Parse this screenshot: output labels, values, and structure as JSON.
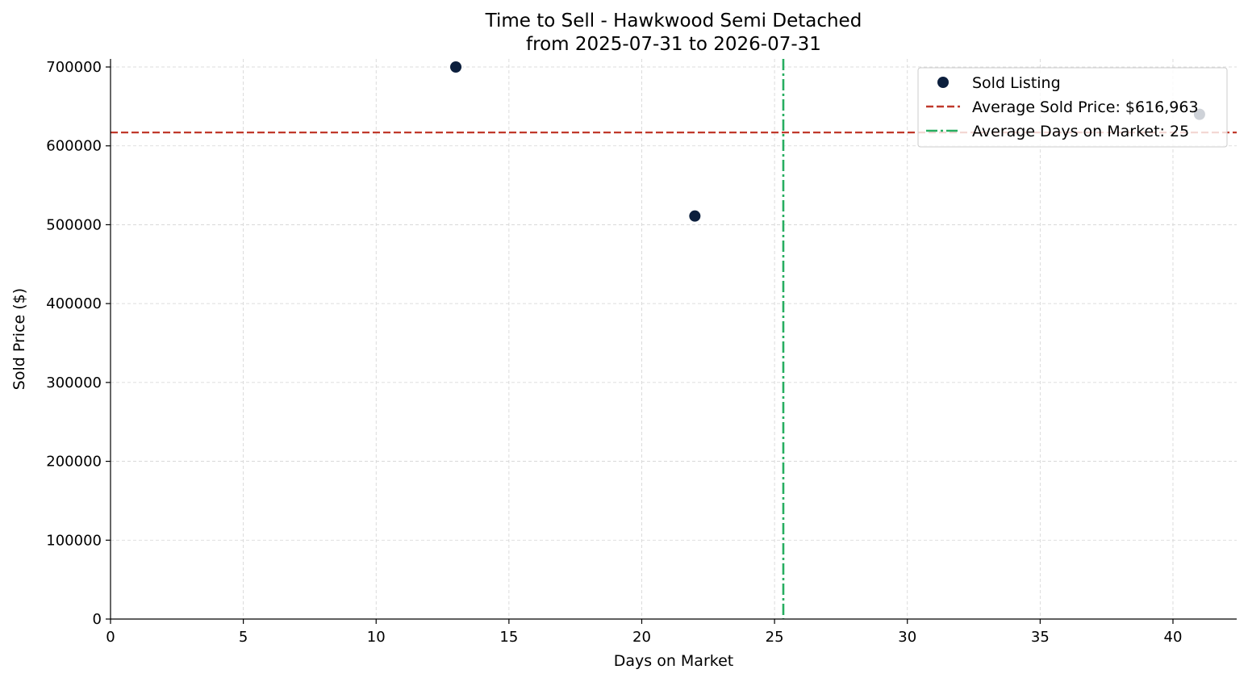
{
  "chart_data": {
    "type": "scatter",
    "title": "Time to Sell - Hawkwood Semi Detached",
    "subtitle": "from 2025-07-31 to 2026-07-31",
    "xlabel": "Days on Market",
    "ylabel": "Sold Price ($)",
    "xlim": [
      0,
      42.4
    ],
    "ylim": [
      0,
      700000
    ],
    "x_ticks": [
      0,
      5,
      10,
      15,
      20,
      25,
      30,
      35,
      40
    ],
    "y_ticks": [
      0,
      100000,
      200000,
      300000,
      400000,
      500000,
      600000,
      700000
    ],
    "x_tick_labels": [
      "0",
      "5",
      "10",
      "15",
      "20",
      "25",
      "30",
      "35",
      "40"
    ],
    "y_tick_labels": [
      "0",
      "100000",
      "200000",
      "300000",
      "400000",
      "500000",
      "600000",
      "700000"
    ],
    "grid": true,
    "legend_position": "top-right",
    "series": [
      {
        "name": "Sold Listing",
        "color": "#0c1f3d",
        "points": [
          {
            "x": 13,
            "y": 700000
          },
          {
            "x": 22,
            "y": 511000
          },
          {
            "x": 41,
            "y": 640000
          }
        ]
      }
    ],
    "reference_lines": [
      {
        "orientation": "horizontal",
        "value": 616963,
        "label": "Average Sold Price: $616,963",
        "color": "#c0392b",
        "style": "dashed"
      },
      {
        "orientation": "vertical",
        "value": 25.33,
        "label": "Average Days on Market: 25",
        "color": "#27ae60",
        "style": "dashdot"
      }
    ],
    "legend": {
      "items": [
        {
          "label": "Sold Listing",
          "kind": "marker",
          "color": "#0c1f3d"
        },
        {
          "label": "Average Sold Price: $616,963",
          "kind": "dashed",
          "color": "#c0392b"
        },
        {
          "label": "Average Days on Market: 25",
          "kind": "dashdot",
          "color": "#27ae60"
        }
      ]
    }
  }
}
